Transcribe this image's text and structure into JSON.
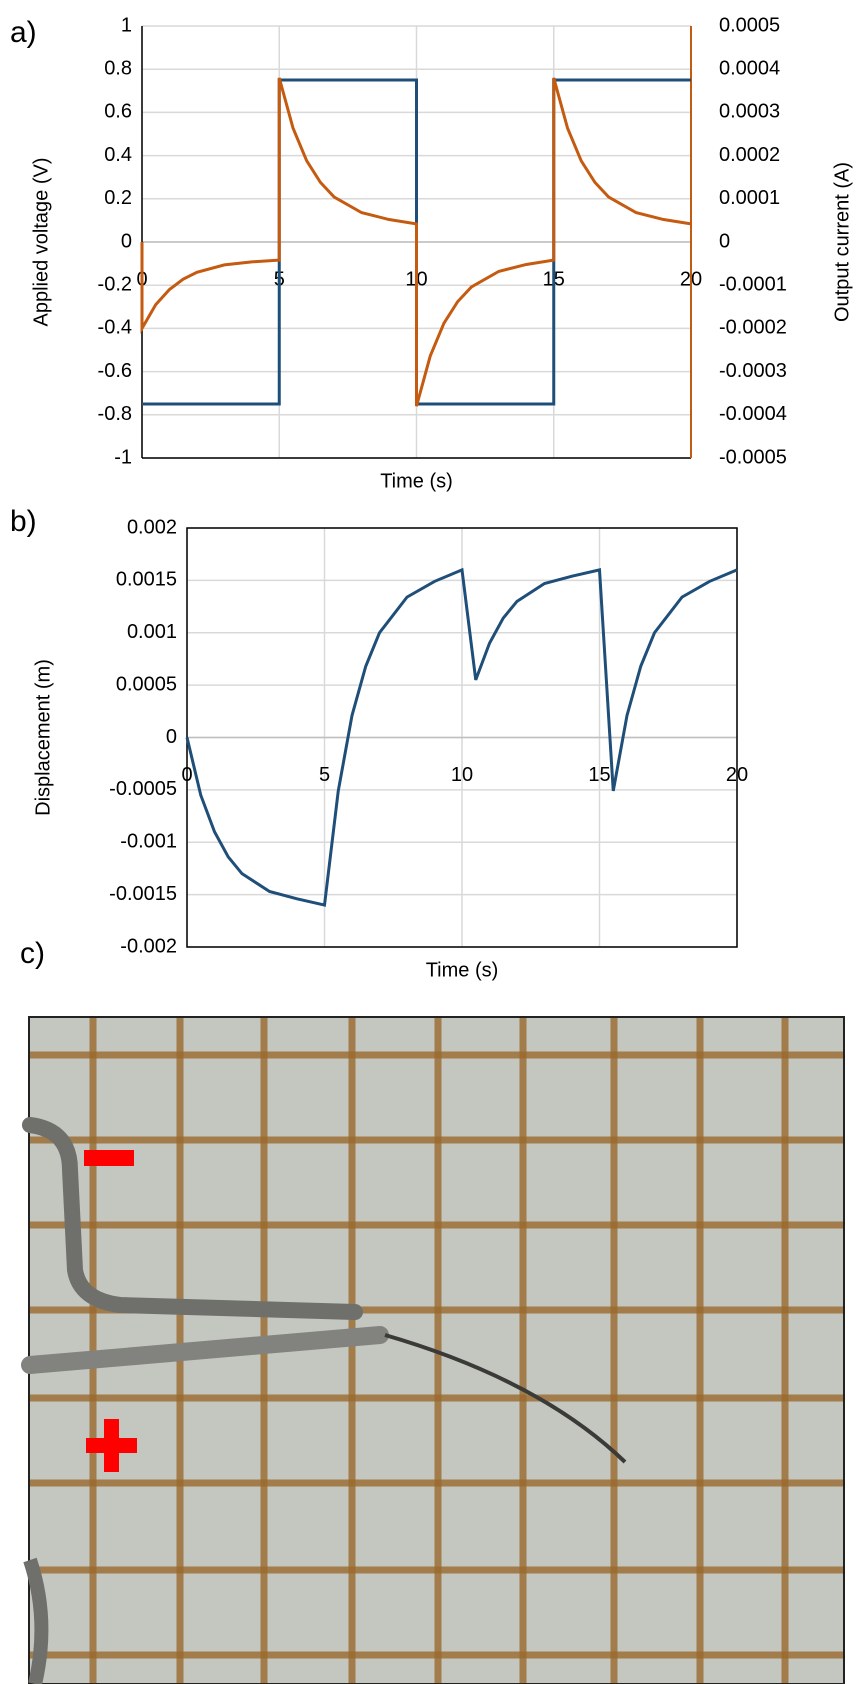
{
  "panel_labels": [
    "a)",
    "b)",
    "c)"
  ],
  "chart_data": [
    {
      "type": "line",
      "xlabel": "Time (s)",
      "ylabel": "Applied voltage (V)",
      "y2label": "Output current (A)",
      "xlim": [
        0,
        20
      ],
      "xticks": [
        0,
        5,
        10,
        15,
        20
      ],
      "ylim": [
        -1,
        1
      ],
      "yticks": [
        -1,
        -0.8,
        -0.6,
        -0.4,
        -0.2,
        0,
        0.2,
        0.4,
        0.6,
        0.8,
        1
      ],
      "y2lim": [
        -0.0005,
        0.0005
      ],
      "y2ticks": [
        -0.0005,
        -0.0004,
        -0.0003,
        -0.0002,
        -0.0001,
        0,
        0.0001,
        0.0002,
        0.0003,
        0.0004,
        0.0005
      ],
      "y2color": "#c55a11",
      "grid": true,
      "series": [
        {
          "color": "#1f4e79",
          "x": [
            0,
            5,
            5,
            10,
            10,
            15,
            15,
            20
          ],
          "values": [
            -0.75,
            -0.75,
            0.75,
            0.75,
            -0.75,
            -0.75,
            0.75,
            0.75
          ]
        },
        {
          "color": "#c55a11",
          "axis": "y2",
          "x": [
            0,
            0,
            0.5,
            1,
            1.5,
            2,
            3,
            4,
            5,
            5,
            5.5,
            6,
            6.5,
            7,
            8,
            9,
            10,
            10,
            10.5,
            11,
            11.5,
            12,
            13,
            14,
            15,
            15,
            15.5,
            16,
            16.5,
            17,
            18,
            19,
            20
          ],
          "values": [
            0,
            -0.0002,
            -0.000145,
            -0.00011,
            -8.6e-05,
            -7e-05,
            -5.3e-05,
            -4.6e-05,
            -4.2e-05,
            0.00038,
            0.000264,
            0.000188,
            0.000138,
            0.000104,
            6.8e-05,
            5.2e-05,
            4.2e-05,
            -0.00038,
            -0.000264,
            -0.000188,
            -0.000138,
            -0.000104,
            -6.8e-05,
            -5.2e-05,
            -4.2e-05,
            0.00038,
            0.000264,
            0.000188,
            0.000138,
            0.000104,
            6.8e-05,
            5.2e-05,
            4.2e-05
          ]
        }
      ]
    },
    {
      "type": "line",
      "xlabel": "Time (s)",
      "ylabel": "Displacement (m)",
      "xlim": [
        0,
        20
      ],
      "xticks": [
        0,
        5,
        10,
        15,
        20
      ],
      "ylim": [
        -0.002,
        0.002
      ],
      "yticks": [
        -0.002,
        -0.0015,
        -0.001,
        -0.0005,
        0,
        0.0005,
        0.001,
        0.0015,
        0.002
      ],
      "grid": true,
      "series": [
        {
          "color": "#1f4e79",
          "x": [
            0,
            0.5,
            1,
            1.5,
            2,
            3,
            4,
            5,
            5.5,
            6,
            6.5,
            7,
            8,
            9,
            10,
            10.5,
            11,
            11.5,
            12,
            13,
            14,
            15,
            15.5,
            16,
            16.5,
            17,
            18,
            19,
            20
          ],
          "values": [
            0,
            -0.00055,
            -0.0009,
            -0.00114,
            -0.0013,
            -0.00147,
            -0.00154,
            -0.0016,
            -0.00051,
            0.00021,
            0.00068,
            0.001,
            0.00134,
            0.00149,
            0.0016,
            0.00055,
            0.0009,
            0.00114,
            0.0013,
            0.00147,
            0.00154,
            0.0016,
            -0.00051,
            0.00021,
            0.00068,
            0.001,
            0.00134,
            0.00149,
            0.0016
          ]
        }
      ]
    }
  ]
}
